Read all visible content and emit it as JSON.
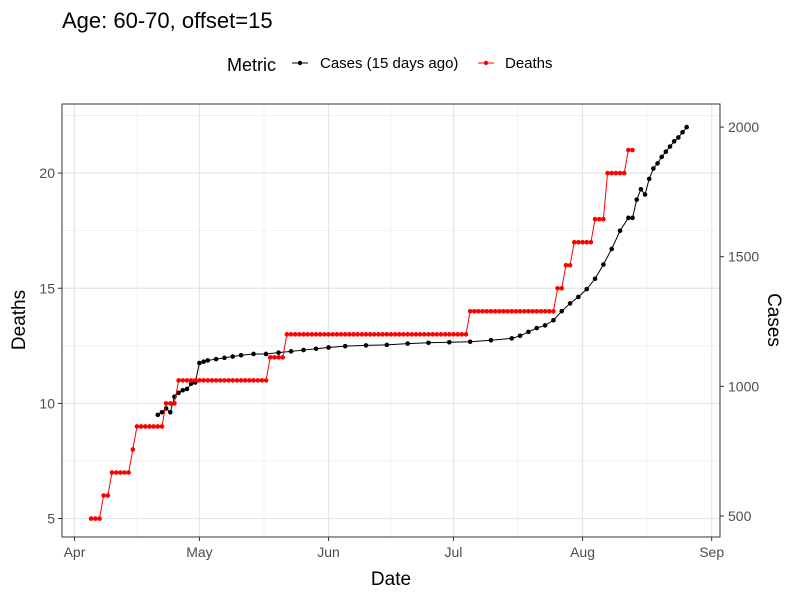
{
  "chart_data": {
    "type": "line",
    "title": "Age: 60-70, offset=15",
    "xlabel": "Date",
    "ylabel_left": "Deaths",
    "ylabel_right": "Cases",
    "legend": {
      "title": "Metric",
      "placement": "top",
      "entries": [
        "Cases (15 days ago)",
        "Deaths"
      ]
    },
    "x_ticks": [
      "Apr",
      "May",
      "Jun",
      "Jul",
      "Aug",
      "Sep"
    ],
    "x_tick_dates": [
      "2020-04-01",
      "2020-05-01",
      "2020-06-01",
      "2020-07-01",
      "2020-08-01",
      "2020-09-01"
    ],
    "xlim": [
      "2020-03-29",
      "2020-09-03"
    ],
    "y_left": {
      "ticks": [
        5,
        10,
        15,
        20
      ],
      "ylim": [
        4.2,
        23
      ]
    },
    "y_right": {
      "ticks": [
        500,
        1000,
        1500,
        2000
      ],
      "ylim": [
        419,
        2089
      ]
    },
    "grid": true,
    "series": [
      {
        "name": "Cases (15 days ago)",
        "axis": "right",
        "color": "#000000",
        "points": [
          [
            "2020-04-21",
            890
          ],
          [
            "2020-04-22",
            900
          ],
          [
            "2020-04-23",
            915
          ],
          [
            "2020-04-24",
            900
          ],
          [
            "2020-04-25",
            960
          ],
          [
            "2020-04-26",
            975
          ],
          [
            "2020-04-27",
            985
          ],
          [
            "2020-04-28",
            990
          ],
          [
            "2020-04-29",
            1010
          ],
          [
            "2020-04-30",
            1015
          ],
          [
            "2020-05-01",
            1090
          ],
          [
            "2020-05-02",
            1095
          ],
          [
            "2020-05-03",
            1100
          ],
          [
            "2020-05-05",
            1105
          ],
          [
            "2020-05-07",
            1110
          ],
          [
            "2020-05-09",
            1115
          ],
          [
            "2020-05-11",
            1120
          ],
          [
            "2020-05-14",
            1125
          ],
          [
            "2020-05-17",
            1125
          ],
          [
            "2020-05-20",
            1130
          ],
          [
            "2020-05-23",
            1135
          ],
          [
            "2020-05-26",
            1140
          ],
          [
            "2020-05-29",
            1145
          ],
          [
            "2020-06-01",
            1150
          ],
          [
            "2020-06-05",
            1155
          ],
          [
            "2020-06-10",
            1158
          ],
          [
            "2020-06-15",
            1160
          ],
          [
            "2020-06-20",
            1165
          ],
          [
            "2020-06-25",
            1168
          ],
          [
            "2020-06-30",
            1170
          ],
          [
            "2020-07-05",
            1172
          ],
          [
            "2020-07-10",
            1178
          ],
          [
            "2020-07-15",
            1185
          ],
          [
            "2020-07-17",
            1195
          ],
          [
            "2020-07-19",
            1210
          ],
          [
            "2020-07-21",
            1225
          ],
          [
            "2020-07-23",
            1235
          ],
          [
            "2020-07-25",
            1255
          ],
          [
            "2020-07-27",
            1290
          ],
          [
            "2020-07-29",
            1320
          ],
          [
            "2020-07-31",
            1345
          ],
          [
            "2020-08-02",
            1375
          ],
          [
            "2020-08-04",
            1415
          ],
          [
            "2020-08-06",
            1470
          ],
          [
            "2020-08-08",
            1530
          ],
          [
            "2020-08-10",
            1600
          ],
          [
            "2020-08-12",
            1650
          ],
          [
            "2020-08-13",
            1650
          ],
          [
            "2020-08-14",
            1720
          ],
          [
            "2020-08-15",
            1760
          ],
          [
            "2020-08-16",
            1740
          ],
          [
            "2020-08-17",
            1800
          ],
          [
            "2020-08-18",
            1840
          ],
          [
            "2020-08-19",
            1860
          ],
          [
            "2020-08-20",
            1885
          ],
          [
            "2020-08-21",
            1905
          ],
          [
            "2020-08-22",
            1925
          ],
          [
            "2020-08-23",
            1945
          ],
          [
            "2020-08-24",
            1960
          ],
          [
            "2020-08-25",
            1980
          ],
          [
            "2020-08-26",
            2000
          ]
        ]
      },
      {
        "name": "Deaths",
        "axis": "left",
        "color": "#ff0000",
        "points": [
          [
            "2020-04-05",
            5
          ],
          [
            "2020-04-06",
            5
          ],
          [
            "2020-04-07",
            5
          ],
          [
            "2020-04-08",
            6
          ],
          [
            "2020-04-09",
            6
          ],
          [
            "2020-04-10",
            7
          ],
          [
            "2020-04-11",
            7
          ],
          [
            "2020-04-12",
            7
          ],
          [
            "2020-04-13",
            7
          ],
          [
            "2020-04-14",
            7
          ],
          [
            "2020-04-15",
            8
          ],
          [
            "2020-04-16",
            9
          ],
          [
            "2020-04-17",
            9
          ],
          [
            "2020-04-18",
            9
          ],
          [
            "2020-04-19",
            9
          ],
          [
            "2020-04-20",
            9
          ],
          [
            "2020-04-21",
            9
          ],
          [
            "2020-04-22",
            9
          ],
          [
            "2020-04-23",
            10
          ],
          [
            "2020-04-24",
            10
          ],
          [
            "2020-04-25",
            10
          ],
          [
            "2020-04-26",
            11
          ],
          [
            "2020-04-27",
            11
          ],
          [
            "2020-04-28",
            11
          ],
          [
            "2020-04-29",
            11
          ],
          [
            "2020-04-30",
            11
          ],
          [
            "2020-05-01",
            11
          ],
          [
            "2020-05-02",
            11
          ],
          [
            "2020-05-03",
            11
          ],
          [
            "2020-05-04",
            11
          ],
          [
            "2020-05-05",
            11
          ],
          [
            "2020-05-06",
            11
          ],
          [
            "2020-05-07",
            11
          ],
          [
            "2020-05-08",
            11
          ],
          [
            "2020-05-09",
            11
          ],
          [
            "2020-05-10",
            11
          ],
          [
            "2020-05-11",
            11
          ],
          [
            "2020-05-12",
            11
          ],
          [
            "2020-05-13",
            11
          ],
          [
            "2020-05-14",
            11
          ],
          [
            "2020-05-15",
            11
          ],
          [
            "2020-05-16",
            11
          ],
          [
            "2020-05-17",
            11
          ],
          [
            "2020-05-18",
            12
          ],
          [
            "2020-05-19",
            12
          ],
          [
            "2020-05-20",
            12
          ],
          [
            "2020-05-21",
            12
          ],
          [
            "2020-05-22",
            13
          ],
          [
            "2020-05-23",
            13
          ],
          [
            "2020-05-24",
            13
          ],
          [
            "2020-05-25",
            13
          ],
          [
            "2020-05-26",
            13
          ],
          [
            "2020-05-27",
            13
          ],
          [
            "2020-05-28",
            13
          ],
          [
            "2020-05-29",
            13
          ],
          [
            "2020-05-30",
            13
          ],
          [
            "2020-05-31",
            13
          ],
          [
            "2020-06-01",
            13
          ],
          [
            "2020-06-02",
            13
          ],
          [
            "2020-06-03",
            13
          ],
          [
            "2020-06-04",
            13
          ],
          [
            "2020-06-05",
            13
          ],
          [
            "2020-06-06",
            13
          ],
          [
            "2020-06-07",
            13
          ],
          [
            "2020-06-08",
            13
          ],
          [
            "2020-06-09",
            13
          ],
          [
            "2020-06-10",
            13
          ],
          [
            "2020-06-11",
            13
          ],
          [
            "2020-06-12",
            13
          ],
          [
            "2020-06-13",
            13
          ],
          [
            "2020-06-14",
            13
          ],
          [
            "2020-06-15",
            13
          ],
          [
            "2020-06-16",
            13
          ],
          [
            "2020-06-17",
            13
          ],
          [
            "2020-06-18",
            13
          ],
          [
            "2020-06-19",
            13
          ],
          [
            "2020-06-20",
            13
          ],
          [
            "2020-06-21",
            13
          ],
          [
            "2020-06-22",
            13
          ],
          [
            "2020-06-23",
            13
          ],
          [
            "2020-06-24",
            13
          ],
          [
            "2020-06-25",
            13
          ],
          [
            "2020-06-26",
            13
          ],
          [
            "2020-06-27",
            13
          ],
          [
            "2020-06-28",
            13
          ],
          [
            "2020-06-29",
            13
          ],
          [
            "2020-06-30",
            13
          ],
          [
            "2020-07-01",
            13
          ],
          [
            "2020-07-02",
            13
          ],
          [
            "2020-07-03",
            13
          ],
          [
            "2020-07-04",
            13
          ],
          [
            "2020-07-05",
            14
          ],
          [
            "2020-07-06",
            14
          ],
          [
            "2020-07-07",
            14
          ],
          [
            "2020-07-08",
            14
          ],
          [
            "2020-07-09",
            14
          ],
          [
            "2020-07-10",
            14
          ],
          [
            "2020-07-11",
            14
          ],
          [
            "2020-07-12",
            14
          ],
          [
            "2020-07-13",
            14
          ],
          [
            "2020-07-14",
            14
          ],
          [
            "2020-07-15",
            14
          ],
          [
            "2020-07-16",
            14
          ],
          [
            "2020-07-17",
            14
          ],
          [
            "2020-07-18",
            14
          ],
          [
            "2020-07-19",
            14
          ],
          [
            "2020-07-20",
            14
          ],
          [
            "2020-07-21",
            14
          ],
          [
            "2020-07-22",
            14
          ],
          [
            "2020-07-23",
            14
          ],
          [
            "2020-07-24",
            14
          ],
          [
            "2020-07-25",
            14
          ],
          [
            "2020-07-26",
            15
          ],
          [
            "2020-07-27",
            15
          ],
          [
            "2020-07-28",
            16
          ],
          [
            "2020-07-29",
            16
          ],
          [
            "2020-07-30",
            17
          ],
          [
            "2020-07-31",
            17
          ],
          [
            "2020-08-01",
            17
          ],
          [
            "2020-08-02",
            17
          ],
          [
            "2020-08-03",
            17
          ],
          [
            "2020-08-04",
            18
          ],
          [
            "2020-08-05",
            18
          ],
          [
            "2020-08-06",
            18
          ],
          [
            "2020-08-07",
            20
          ],
          [
            "2020-08-08",
            20
          ],
          [
            "2020-08-09",
            20
          ],
          [
            "2020-08-10",
            20
          ],
          [
            "2020-08-11",
            20
          ],
          [
            "2020-08-12",
            21
          ],
          [
            "2020-08-13",
            21
          ]
        ]
      }
    ]
  }
}
